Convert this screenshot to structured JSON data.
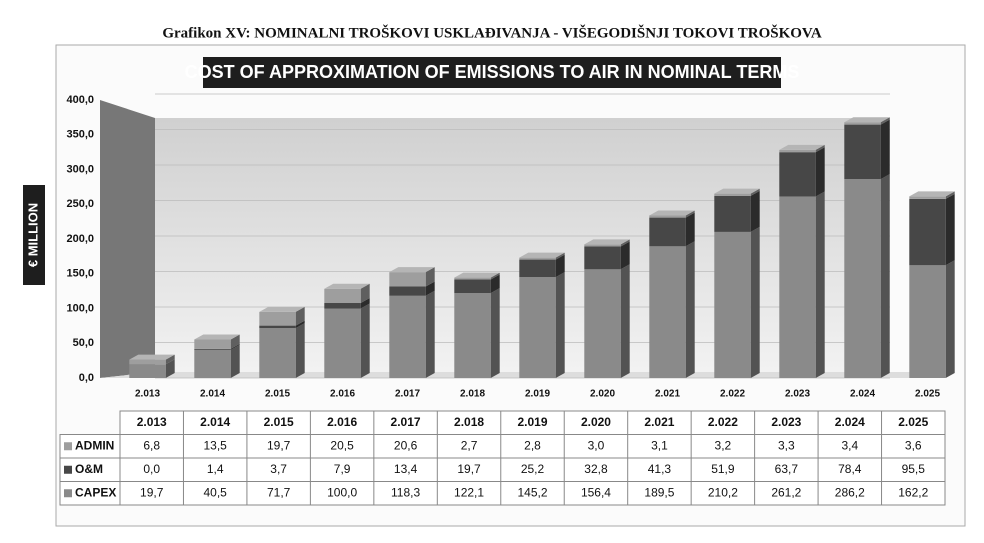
{
  "caption": "Grafikon XV: NOMINALNI TROŠKOVI USKLAĐIVANJA - VIŠEGODIŠNJI TOKOVI TROŠKOVA",
  "chart_data": {
    "type": "stacked-bar",
    "title": "COST OF APPROXIMATION OF EMISSIONS TO AIR IN NOMINAL TERMS",
    "y_label": "€ MILLION",
    "categories": [
      "2.013",
      "2.014",
      "2.015",
      "2.016",
      "2.017",
      "2.018",
      "2.019",
      "2.020",
      "2.021",
      "2.022",
      "2.023",
      "2.024",
      "2.025"
    ],
    "series": [
      {
        "name": "CAPEX",
        "color": "#8a8a8a",
        "values": [
          19.7,
          40.5,
          71.7,
          100.0,
          118.3,
          122.1,
          145.2,
          156.4,
          189.5,
          210.2,
          261.2,
          286.2,
          162.2
        ],
        "value_labels": [
          "19,7",
          "40,5",
          "71,7",
          "100,0",
          "118,3",
          "122,1",
          "145,2",
          "156,4",
          "189,5",
          "210,2",
          "261,2",
          "286,2",
          "162,2"
        ]
      },
      {
        "name": "O&M",
        "color": "#474747",
        "values": [
          0.0,
          1.4,
          3.7,
          7.9,
          13.4,
          19.7,
          25.2,
          32.8,
          41.3,
          51.9,
          63.7,
          78.4,
          95.5
        ],
        "value_labels": [
          "0,0",
          "1,4",
          "3,7",
          "7,9",
          "13,4",
          "19,7",
          "25,2",
          "32,8",
          "41,3",
          "51,9",
          "63,7",
          "78,4",
          "95,5"
        ]
      },
      {
        "name": "ADMIN",
        "color": "#9e9e9e",
        "values": [
          6.8,
          13.5,
          19.7,
          20.5,
          20.6,
          2.7,
          2.8,
          3.0,
          3.1,
          3.2,
          3.3,
          3.4,
          3.6
        ],
        "value_labels": [
          "6,8",
          "13,5",
          "19,7",
          "20,5",
          "20,6",
          "2,7",
          "2,8",
          "3,0",
          "3,1",
          "3,2",
          "3,3",
          "3,4",
          "3,6"
        ]
      }
    ],
    "table_order": [
      2,
      1,
      0
    ],
    "ylim": [
      0,
      400
    ],
    "yticks": [
      {
        "value": 0,
        "label": "0,0"
      },
      {
        "value": 50,
        "label": "50,0"
      },
      {
        "value": 100,
        "label": "100,0"
      },
      {
        "value": 150,
        "label": "150,0"
      },
      {
        "value": 200,
        "label": "200,0"
      },
      {
        "value": 250,
        "label": "250,0"
      },
      {
        "value": 300,
        "label": "300,0"
      },
      {
        "value": 350,
        "label": "350,0"
      },
      {
        "value": 400,
        "label": "400,0"
      }
    ],
    "grid": true
  }
}
